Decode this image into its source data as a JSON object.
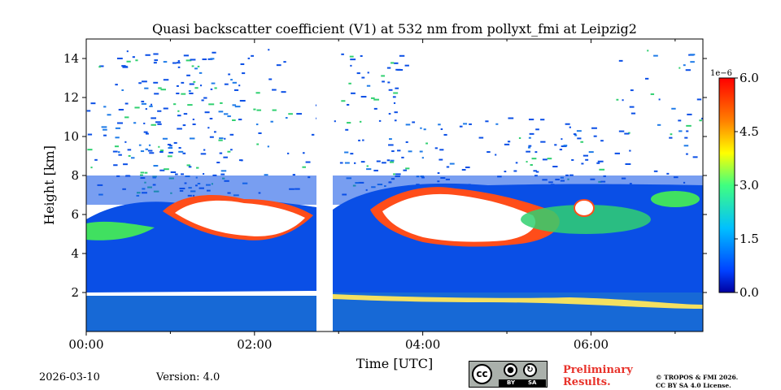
{
  "chart_data": {
    "type": "heatmap",
    "title": "Quasi backscatter coefficient (V1) at 532 nm from pollyxt_fmi at Leipzig2",
    "xlabel": "Time [UTC]",
    "ylabel": "Height [km]",
    "x_range_hours": [
      0,
      7.33
    ],
    "ylim": [
      0,
      15
    ],
    "x_ticks": [
      {
        "value": 0,
        "label": "00:00"
      },
      {
        "value": 2,
        "label": "02:00"
      },
      {
        "value": 4,
        "label": "04:00"
      },
      {
        "value": 6,
        "label": "06:00"
      }
    ],
    "y_ticks": [
      {
        "value": 2,
        "label": "2"
      },
      {
        "value": 4,
        "label": "4"
      },
      {
        "value": 6,
        "label": "6"
      },
      {
        "value": 8,
        "label": "8"
      },
      {
        "value": 10,
        "label": "10"
      },
      {
        "value": 12,
        "label": "12"
      },
      {
        "value": 14,
        "label": "14"
      }
    ],
    "colorbar": {
      "multiplier_label": "1e−6",
      "min": 0.0,
      "max": 6.0,
      "ticks": [
        {
          "value": 0.0,
          "label": "0.0"
        },
        {
          "value": 1.5,
          "label": "1.5"
        },
        {
          "value": 3.0,
          "label": "3.0"
        },
        {
          "value": 4.5,
          "label": "4.5"
        },
        {
          "value": 6.0,
          "label": "6.0"
        }
      ],
      "colormap": "jet"
    },
    "data_gap_hours": [
      2.73,
      2.93
    ],
    "features": [
      {
        "name": "boundary-layer",
        "height_km": [
          0,
          2
        ],
        "level": 0.5
      },
      {
        "name": "aerosol-layer",
        "height_km": [
          2,
          4.5
        ],
        "level": 0.6
      },
      {
        "name": "cloud-layer-1",
        "time_hours": [
          0.9,
          2.6
        ],
        "height_km": [
          4.5,
          7
        ],
        "level": 6.0
      },
      {
        "name": "cloud-layer-2",
        "time_hours": [
          3.4,
          5.6
        ],
        "height_km": [
          4.3,
          7.5
        ],
        "level": 6.0
      }
    ]
  },
  "footer": {
    "date": "2026-03-10",
    "version": "Version: 4.0",
    "preliminary_line1": "Preliminary",
    "preliminary_line2": "Results.",
    "copyright_line1": "© TROPOS & FMI 2026.",
    "copyright_line2": "CC BY SA 4.0 License.",
    "license_badge": {
      "cc": "cc",
      "by": "BY",
      "sa": "SA"
    }
  },
  "colors": {
    "background": "#ffffff",
    "prelim": "#e8322a"
  }
}
